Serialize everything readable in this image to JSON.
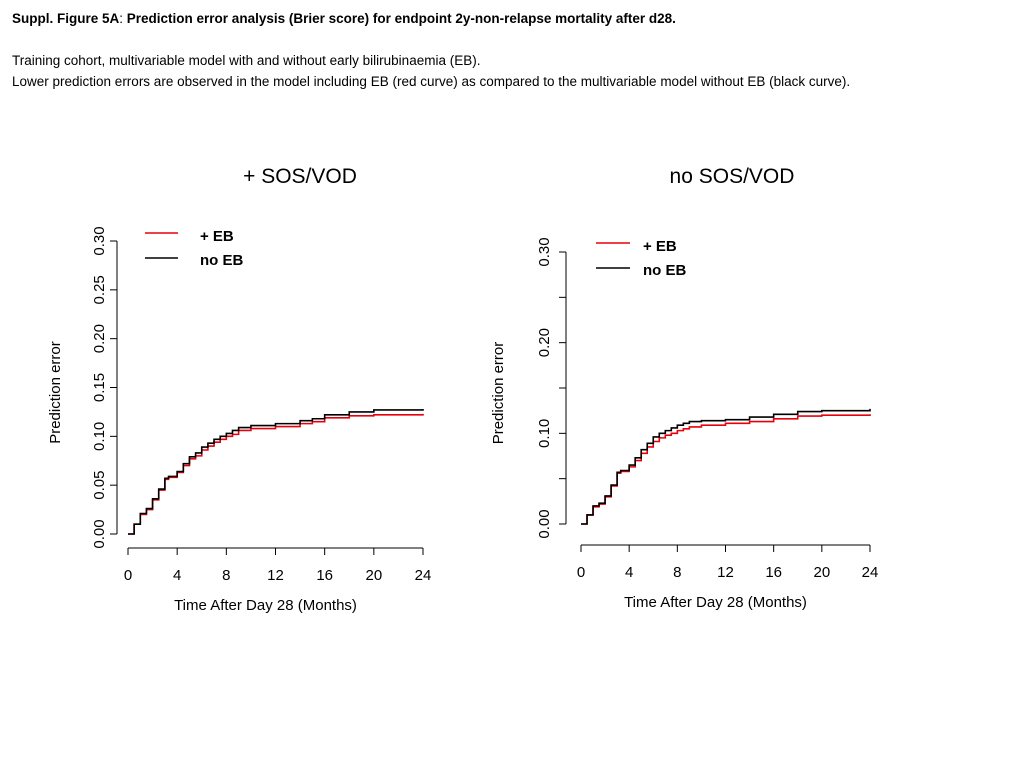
{
  "caption": {
    "title_prefix": "Suppl. Figure 5A",
    "title_sep": ": ",
    "title_rest": "Prediction error analysis (Brier score) for endpoint 2y-non-relapse mortality after d28.",
    "line1": "Training cohort, multivariable model with and without early bilirubinaemia (EB).",
    "line2": "Lower prediction errors are observed in the model including EB (red curve) as compared to the multivariable model without EB (black curve)."
  },
  "colors": {
    "eb": "#e8000b",
    "no_eb": "#000000"
  },
  "chart_data": [
    {
      "type": "line",
      "title": "+ SOS/VOD",
      "xlabel": "Time After Day 28 (Months)",
      "ylabel": "Prediction error",
      "xlim": [
        0,
        24
      ],
      "ylim": [
        0,
        0.3
      ],
      "xticks": [
        0,
        4,
        8,
        12,
        16,
        20,
        24
      ],
      "yticks": [
        "0.00",
        "0.05",
        "0.10",
        "0.15",
        "0.20",
        "0.25",
        "0.30"
      ],
      "legend": [
        "+ EB",
        "no EB"
      ],
      "legend_position": "top-left",
      "grid": false,
      "series": [
        {
          "name": "+ EB",
          "x": [
            0,
            0.5,
            1,
            1.5,
            2,
            2.5,
            3,
            3.3,
            4,
            4.5,
            5,
            5.5,
            6,
            6.5,
            7,
            7.5,
            8,
            8.5,
            9,
            10,
            12,
            14,
            15,
            16,
            18,
            20,
            22,
            24
          ],
          "y": [
            0,
            0.01,
            0.02,
            0.025,
            0.035,
            0.045,
            0.056,
            0.058,
            0.063,
            0.07,
            0.077,
            0.08,
            0.086,
            0.09,
            0.094,
            0.097,
            0.1,
            0.102,
            0.106,
            0.108,
            0.11,
            0.113,
            0.115,
            0.119,
            0.121,
            0.122,
            0.122,
            0.123
          ]
        },
        {
          "name": "no EB",
          "x": [
            0,
            0.5,
            1,
            1.5,
            2,
            2.5,
            3,
            3.3,
            4,
            4.5,
            5,
            5.5,
            6,
            6.5,
            7,
            7.5,
            8,
            8.5,
            9,
            10,
            12,
            14,
            15,
            16,
            18,
            20,
            22,
            24
          ],
          "y": [
            0,
            0.01,
            0.021,
            0.026,
            0.036,
            0.046,
            0.057,
            0.059,
            0.064,
            0.072,
            0.079,
            0.083,
            0.089,
            0.093,
            0.097,
            0.1,
            0.103,
            0.106,
            0.109,
            0.111,
            0.113,
            0.116,
            0.118,
            0.122,
            0.125,
            0.127,
            0.127,
            0.128
          ]
        }
      ]
    },
    {
      "type": "line",
      "title": "no SOS/VOD",
      "xlabel": "Time After Day 28 (Months)",
      "ylabel": "Prediction error",
      "xlim": [
        0,
        24
      ],
      "ylim": [
        0,
        0.3
      ],
      "xticks": [
        0,
        4,
        8,
        12,
        16,
        20,
        24
      ],
      "yticks": [
        "0.00",
        "",
        "0.10",
        "",
        "0.20",
        "",
        "0.30"
      ],
      "legend": [
        "+ EB",
        "no EB"
      ],
      "legend_position": "top-left",
      "grid": false,
      "series": [
        {
          "name": "+ EB",
          "x": [
            0,
            0.5,
            1,
            1.5,
            2,
            2.5,
            3,
            3.3,
            4,
            4.5,
            5,
            5.5,
            6,
            6.5,
            7,
            7.5,
            8,
            8.5,
            9,
            10,
            12,
            14,
            16,
            18,
            20,
            22,
            24
          ],
          "y": [
            0,
            0.01,
            0.019,
            0.022,
            0.03,
            0.042,
            0.056,
            0.058,
            0.063,
            0.07,
            0.078,
            0.085,
            0.091,
            0.095,
            0.098,
            0.1,
            0.103,
            0.105,
            0.107,
            0.109,
            0.111,
            0.113,
            0.116,
            0.119,
            0.12,
            0.12,
            0.121
          ]
        },
        {
          "name": "no EB",
          "x": [
            0,
            0.5,
            1,
            1.5,
            2,
            2.5,
            3,
            3.3,
            4,
            4.5,
            5,
            5.5,
            6,
            6.5,
            7,
            7.5,
            8,
            8.5,
            9,
            10,
            12,
            14,
            16,
            18,
            20,
            22,
            24
          ],
          "y": [
            0,
            0.01,
            0.02,
            0.023,
            0.031,
            0.043,
            0.057,
            0.059,
            0.065,
            0.073,
            0.082,
            0.089,
            0.096,
            0.1,
            0.103,
            0.106,
            0.109,
            0.111,
            0.113,
            0.114,
            0.115,
            0.118,
            0.121,
            0.124,
            0.125,
            0.125,
            0.127
          ]
        }
      ]
    }
  ]
}
